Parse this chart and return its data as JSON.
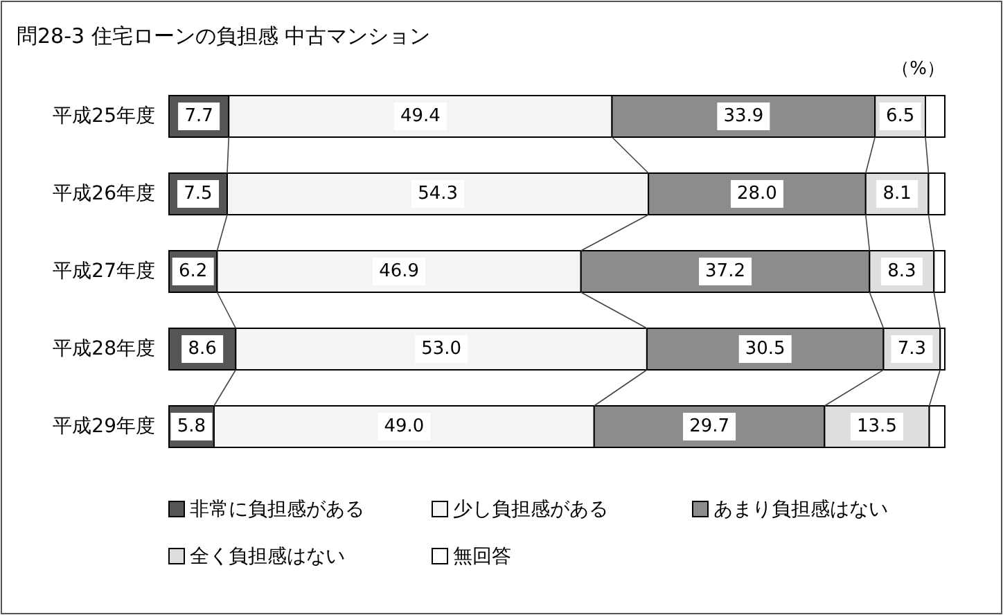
{
  "chart_data": {
    "type": "bar",
    "orientation": "horizontal",
    "stacked": true,
    "title": "問28-3 住宅ローンの負担感 中古マンション",
    "annotations": [
      "（%）"
    ],
    "legend": "bottom",
    "categories": [
      "平成25年度",
      "平成26年度",
      "平成27年度",
      "平成28年度",
      "平成29年度"
    ],
    "series": [
      {
        "name": "非常に負担感がある",
        "color": "#555555",
        "values": [
          7.7,
          7.5,
          6.2,
          8.6,
          5.8
        ],
        "value_labels": [
          "7.7",
          "7.5",
          "6.2",
          "8.6",
          "5.8"
        ]
      },
      {
        "name": "少し負担感がある",
        "color": "#f4f4f4",
        "values": [
          49.4,
          54.3,
          46.9,
          53.0,
          49.0
        ],
        "value_labels": [
          "49.4",
          "54.3",
          "46.9",
          "53.0",
          "49.0"
        ]
      },
      {
        "name": "あまり負担感はない",
        "color": "#8c8c8c",
        "values": [
          33.9,
          28.0,
          37.2,
          30.5,
          29.7
        ],
        "value_labels": [
          "33.9",
          "28.0",
          "37.2",
          "30.5",
          "29.7"
        ]
      },
      {
        "name": "全く負担感はない",
        "color": "#dedede",
        "values": [
          6.5,
          8.1,
          8.3,
          7.3,
          13.5
        ],
        "value_labels": [
          "6.5",
          "8.1",
          "8.3",
          "7.3",
          "13.5"
        ]
      },
      {
        "name": "無回答",
        "color": "#ffffff",
        "values": [
          2.5,
          2.1,
          1.4,
          0.6,
          2.0
        ],
        "value_labels": [
          null,
          null,
          null,
          null,
          null
        ]
      }
    ]
  }
}
